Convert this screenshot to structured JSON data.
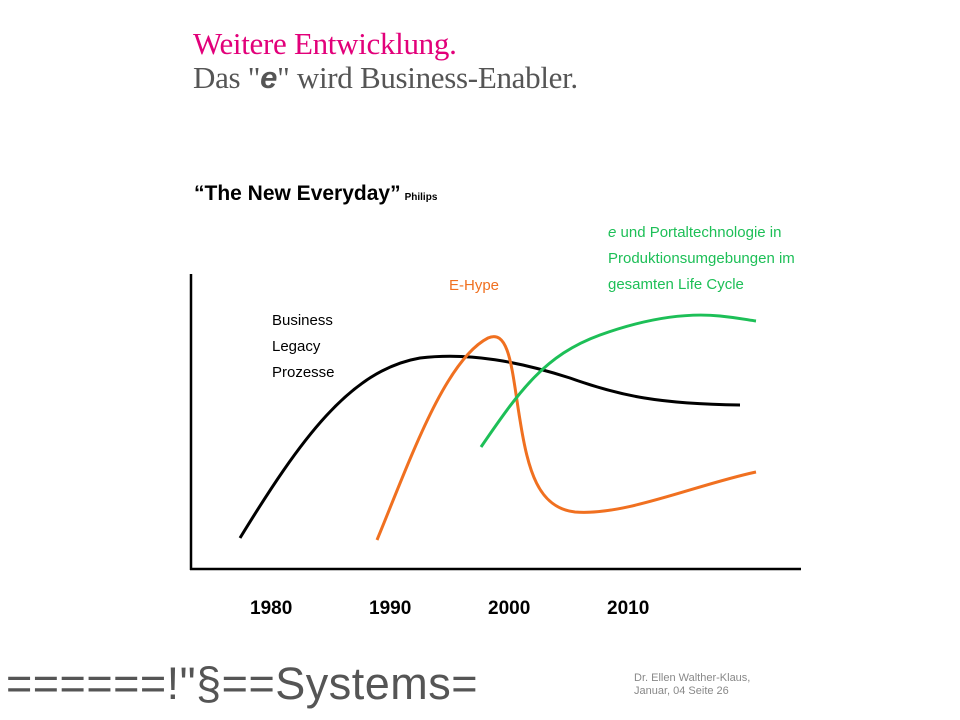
{
  "slide": {
    "title": "Weitere Entwicklung.",
    "subtitle_before": "Das \"",
    "subtitle_e": "e",
    "subtitle_after": "\" wird Business-Enabler.",
    "quote": "“The New Everyday”",
    "quote_source": "Philips"
  },
  "chart_data": {
    "type": "line",
    "x_tick_labels": [
      "1980",
      "1990",
      "2000",
      "2010"
    ],
    "series": [
      {
        "name": "Business Legacy Prozesse",
        "label_lines": [
          "Business",
          "Legacy",
          "Prozesse"
        ],
        "color": "#000000"
      },
      {
        "name": "E-Hype",
        "label_lines": [
          "E-Hype"
        ],
        "color": "#f07020"
      },
      {
        "name": "e und Portaltechnologie in Produktionsumgebungen im gesamten Life Cycle",
        "label_e": "e",
        "label_lines": [
          " und Portaltechnologie in",
          "Produktionsumgebungen im",
          "gesamten Life Cycle"
        ],
        "color": "#1dbf57"
      }
    ],
    "axes": {
      "x_labels_visible": true,
      "y_labels_visible": false,
      "grid": false
    }
  },
  "footer": {
    "logo": "======!\"§==Systems=",
    "author": "Dr. Ellen Walther-Klaus,",
    "date_page": "Januar, 04 Seite 26"
  }
}
